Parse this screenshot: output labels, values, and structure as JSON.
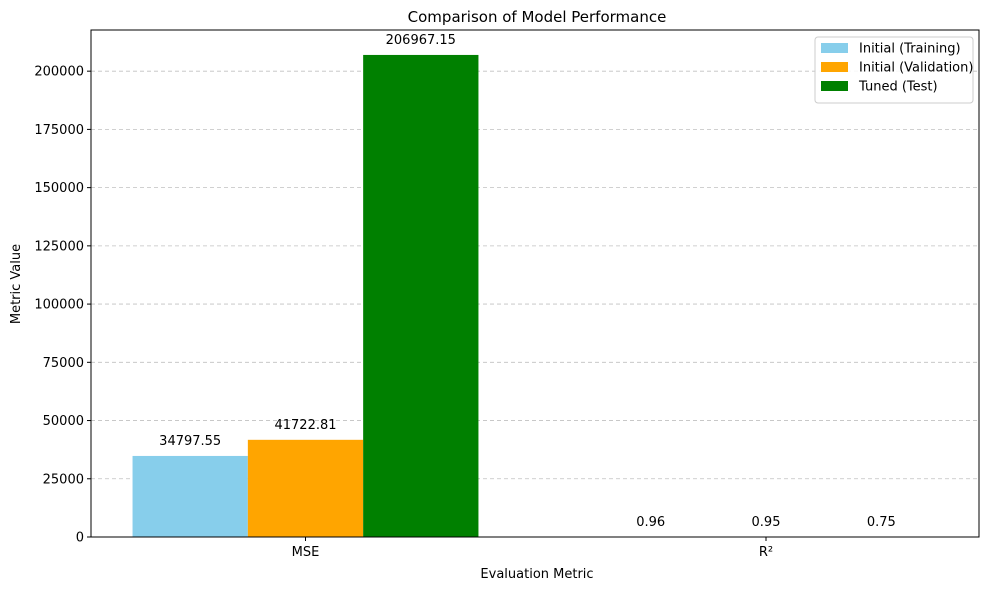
{
  "chart_data": {
    "type": "bar",
    "title": "Comparison of Model Performance",
    "xlabel": "Evaluation Metric",
    "ylabel": "Metric Value",
    "categories": [
      "MSE",
      "R²"
    ],
    "series": [
      {
        "name": "Initial (Training)",
        "color": "#87ceeb",
        "values": [
          34797.55,
          0.96
        ],
        "labels": [
          "34797.55",
          "0.96"
        ]
      },
      {
        "name": "Initial (Validation)",
        "color": "#ffa500",
        "values": [
          41722.81,
          0.95
        ],
        "labels": [
          "41722.81",
          "0.95"
        ]
      },
      {
        "name": "Tuned (Test)",
        "color": "#008000",
        "values": [
          206967.15,
          0.75
        ],
        "labels": [
          "206967.15",
          "0.75"
        ]
      }
    ],
    "ylim": [
      0,
      217675
    ],
    "yticks": [
      0,
      25000,
      50000,
      75000,
      100000,
      125000,
      150000,
      175000,
      200000
    ],
    "ytick_labels": [
      "0",
      "25000",
      "50000",
      "75000",
      "100000",
      "125000",
      "150000",
      "175000",
      "200000"
    ],
    "grid": "y-dashed",
    "legend_position": "top-right"
  }
}
